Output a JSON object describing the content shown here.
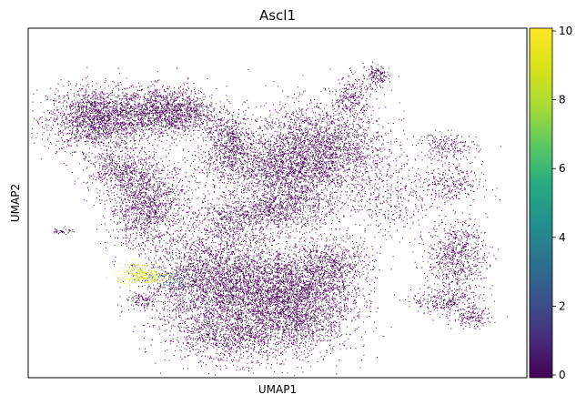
{
  "chart_data": {
    "type": "scatter",
    "title": "Ascl1",
    "xlabel": "UMAP1",
    "ylabel": "UMAP2",
    "x_ticks_shown": false,
    "y_ticks_shown": false,
    "grid": false,
    "legend": "none",
    "colormap": "viridis",
    "colorbar": {
      "range": [
        0,
        10
      ],
      "ticks": [
        0,
        2,
        4,
        6,
        8,
        10
      ],
      "tick_labels": [
        "0",
        "2",
        "4",
        "6",
        "8",
        "10"
      ],
      "placement": "right"
    },
    "xlim": [
      0,
      100
    ],
    "ylim": [
      0,
      100
    ],
    "clusters": [
      {
        "x": 14,
        "y": 74,
        "sx": 5.0,
        "sy": 4.5,
        "n": 1800,
        "value": 0
      },
      {
        "x": 28,
        "y": 76,
        "sx": 5.0,
        "sy": 3.5,
        "n": 1500,
        "value": 0
      },
      {
        "x": 19,
        "y": 59,
        "sx": 3.5,
        "sy": 3.0,
        "n": 500,
        "value": 0
      },
      {
        "x": 24,
        "y": 49,
        "sx": 4.0,
        "sy": 6.0,
        "n": 1300,
        "value": 0
      },
      {
        "x": 40,
        "y": 68,
        "sx": 2.5,
        "sy": 3.5,
        "n": 500,
        "value": 0
      },
      {
        "x": 50,
        "y": 48,
        "sx": 6.0,
        "sy": 3.0,
        "n": 900,
        "value": 0
      },
      {
        "x": 44,
        "y": 60,
        "sx": 6.0,
        "sy": 4.0,
        "n": 700,
        "value": 0
      },
      {
        "x": 58,
        "y": 65,
        "sx": 7.0,
        "sy": 6.5,
        "n": 2600,
        "value": 0
      },
      {
        "x": 65,
        "y": 80,
        "sx": 1.8,
        "sy": 3.0,
        "n": 250,
        "value": 0
      },
      {
        "x": 70,
        "y": 86,
        "sx": 1.2,
        "sy": 1.8,
        "n": 150,
        "value": 0
      },
      {
        "x": 53,
        "y": 57,
        "sx": 4.0,
        "sy": 4.0,
        "n": 500,
        "value": 0
      },
      {
        "x": 40,
        "y": 44,
        "sx": 4.0,
        "sy": 4.0,
        "n": 400,
        "value": 0
      },
      {
        "x": 86,
        "y": 35,
        "sx": 3.0,
        "sy": 5.0,
        "n": 700,
        "value": 0
      },
      {
        "x": 84,
        "y": 55,
        "sx": 3.5,
        "sy": 3.0,
        "n": 300,
        "value": 0
      },
      {
        "x": 72,
        "y": 50,
        "sx": 4.0,
        "sy": 6.0,
        "n": 300,
        "value": 0
      },
      {
        "x": 38,
        "y": 27,
        "sx": 7.0,
        "sy": 7.0,
        "n": 3000,
        "value": 0
      },
      {
        "x": 53,
        "y": 22,
        "sx": 6.0,
        "sy": 7.5,
        "n": 3200,
        "value": 0
      },
      {
        "x": 40,
        "y": 12,
        "sx": 6.0,
        "sy": 4.0,
        "n": 900,
        "value": 0
      },
      {
        "x": 61,
        "y": 32,
        "sx": 4.0,
        "sy": 4.0,
        "n": 600,
        "value": 0
      },
      {
        "x": 84,
        "y": 22,
        "sx": 3.5,
        "sy": 2.0,
        "n": 300,
        "value": 0
      },
      {
        "x": 89,
        "y": 17,
        "sx": 2.0,
        "sy": 1.5,
        "n": 150,
        "value": 0
      },
      {
        "x": 84,
        "y": 66,
        "sx": 3.0,
        "sy": 2.0,
        "n": 220,
        "value": 0
      },
      {
        "x": 7,
        "y": 42,
        "sx": 1.0,
        "sy": 0.5,
        "n": 40,
        "value": 0
      },
      {
        "x": 23,
        "y": 22,
        "sx": 1.5,
        "sy": 1.0,
        "n": 100,
        "value": 0
      },
      {
        "x": 22,
        "y": 30,
        "sx": 2.0,
        "sy": 1.5,
        "n": 180,
        "value": 8.5
      },
      {
        "x": 24,
        "y": 29,
        "sx": 2.0,
        "sy": 1.0,
        "n": 120,
        "value": 9.5
      },
      {
        "x": 28,
        "y": 28,
        "sx": 2.5,
        "sy": 1.5,
        "n": 90,
        "value": 3.5
      }
    ]
  }
}
